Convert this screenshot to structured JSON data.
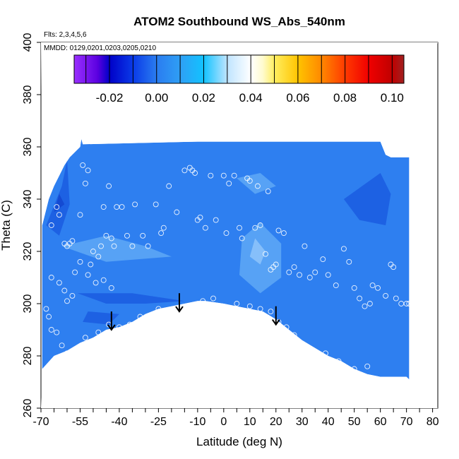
{
  "chart_data": {
    "type": "scatter",
    "title": "ATOM2 Southbound WS_Abs_540nm",
    "xlabel": "Latitude (deg N)",
    "ylabel": "Theta (C)",
    "xlim": [
      -70,
      82
    ],
    "ylim": [
      260,
      400
    ],
    "x_ticks": [
      -70,
      -55,
      -40,
      -25,
      -10,
      0,
      10,
      20,
      30,
      40,
      50,
      60,
      70,
      80
    ],
    "x_minor_ticks": [
      -65,
      -60,
      -50,
      -45,
      -35,
      -30,
      -20,
      -15,
      -5,
      5,
      15,
      25,
      35,
      45,
      55,
      65,
      75
    ],
    "y_ticks": [
      260,
      280,
      300,
      320,
      340,
      360,
      380,
      400
    ],
    "flights_note": "Flts: 2,3,4,5,6",
    "dates_note": "MMDD: 0129,0201,0203,0205,0210",
    "colorbar": {
      "vmin": -0.035,
      "vmax": 0.105,
      "tick_values": [
        -0.02,
        0.0,
        0.02,
        0.04,
        0.06,
        0.08,
        0.1
      ],
      "tick_labels": [
        "-0.02",
        "0.00",
        "0.02",
        "0.04",
        "0.06",
        "0.08",
        "0.10"
      ],
      "color_stops": [
        {
          "v": -0.035,
          "color": "#9b30ff"
        },
        {
          "v": -0.025,
          "color": "#5a00e0"
        },
        {
          "v": -0.02,
          "color": "#0000c8"
        },
        {
          "v": -0.01,
          "color": "#0a3ae8"
        },
        {
          "v": 0.0,
          "color": "#2a7cf0"
        },
        {
          "v": 0.01,
          "color": "#2f9ff5"
        },
        {
          "v": 0.02,
          "color": "#12c3ff"
        },
        {
          "v": 0.03,
          "color": "#bfe4ff"
        },
        {
          "v": 0.04,
          "color": "#ffffff"
        },
        {
          "v": 0.045,
          "color": "#fffbd0"
        },
        {
          "v": 0.05,
          "color": "#ffee60"
        },
        {
          "v": 0.06,
          "color": "#ffc400"
        },
        {
          "v": 0.07,
          "color": "#ff8800"
        },
        {
          "v": 0.08,
          "color": "#ff3a00"
        },
        {
          "v": 0.09,
          "color": "#f00000"
        },
        {
          "v": 0.1,
          "color": "#c00000"
        },
        {
          "v": 0.105,
          "color": "#a02020"
        }
      ]
    },
    "field_colors": {
      "background": "#2e7ff0",
      "light": "#5ea8f6",
      "lighter": "#8ec4fa",
      "dark": "#1a5ce0",
      "darker": "#1346cf"
    },
    "field_top_boundary": [
      [
        -69.5,
        330
      ],
      [
        -67,
        340
      ],
      [
        -65,
        345
      ],
      [
        -63,
        349
      ],
      [
        -61,
        353
      ],
      [
        -59,
        356
      ],
      [
        -57,
        358
      ],
      [
        -55,
        360
      ],
      [
        -54.5,
        363
      ],
      [
        -54,
        361
      ],
      [
        -10,
        362
      ],
      [
        30,
        362
      ],
      [
        60,
        362
      ],
      [
        62,
        357
      ],
      [
        64,
        356
      ],
      [
        71,
        356
      ]
    ],
    "field_bottom_boundary": [
      [
        -69.5,
        275
      ],
      [
        -65,
        280
      ],
      [
        -60,
        282
      ],
      [
        -55,
        285
      ],
      [
        -50,
        287
      ],
      [
        -45,
        290
      ],
      [
        -40,
        291
      ],
      [
        -35,
        293
      ],
      [
        -30,
        296
      ],
      [
        -25,
        298
      ],
      [
        -20,
        299
      ],
      [
        -15,
        300
      ],
      [
        -10,
        301
      ],
      [
        -7,
        301
      ],
      [
        0,
        300
      ],
      [
        5,
        299
      ],
      [
        10,
        298
      ],
      [
        15,
        297
      ],
      [
        20,
        294
      ],
      [
        25,
        290
      ],
      [
        30,
        286
      ],
      [
        35,
        283
      ],
      [
        40,
        280
      ],
      [
        45,
        278
      ],
      [
        50,
        275
      ],
      [
        55,
        273
      ],
      [
        60,
        272
      ],
      [
        65,
        272
      ],
      [
        70,
        272
      ],
      [
        71,
        271
      ]
    ],
    "field_patches": [
      {
        "shade": "light",
        "points": [
          [
            7,
            325
          ],
          [
            14,
            331
          ],
          [
            22,
            323
          ],
          [
            22,
            310
          ],
          [
            14,
            304
          ],
          [
            6,
            311
          ]
        ]
      },
      {
        "shade": "lighter",
        "points": [
          [
            12,
            325
          ],
          [
            16,
            320
          ],
          [
            14,
            315
          ],
          [
            10,
            318
          ]
        ]
      },
      {
        "shade": "light",
        "points": [
          [
            -62,
            322
          ],
          [
            -45,
            326
          ],
          [
            -30,
            322
          ],
          [
            -20,
            318
          ],
          [
            -45,
            316
          ]
        ]
      },
      {
        "shade": "light",
        "points": [
          [
            5,
            348
          ],
          [
            14,
            350
          ],
          [
            20,
            345
          ],
          [
            12,
            342
          ]
        ]
      },
      {
        "shade": "dark",
        "points": [
          [
            -68,
            330
          ],
          [
            -62,
            345
          ],
          [
            -60,
            355
          ],
          [
            -59,
            338
          ],
          [
            -63,
            326
          ]
        ]
      },
      {
        "shade": "darker",
        "points": [
          [
            -65,
            335
          ],
          [
            -63,
            342
          ],
          [
            -61,
            338
          ]
        ]
      },
      {
        "shade": "dark",
        "points": [
          [
            -56,
            304
          ],
          [
            -45,
            300
          ],
          [
            -30,
            300
          ],
          [
            -15,
            301
          ],
          [
            -35,
            304
          ]
        ]
      },
      {
        "shade": "dark",
        "points": [
          [
            46,
            340
          ],
          [
            60,
            350
          ],
          [
            64,
            342
          ],
          [
            62,
            330
          ],
          [
            52,
            332
          ]
        ]
      },
      {
        "shade": "dark",
        "points": [
          [
            -54,
            293
          ],
          [
            -44,
            292
          ],
          [
            -40,
            296
          ],
          [
            -52,
            297
          ]
        ]
      }
    ],
    "samples": [
      [
        -66,
        330
      ],
      [
        -64,
        337
      ],
      [
        -63,
        334
      ],
      [
        -61,
        323
      ],
      [
        -60,
        322
      ],
      [
        -59,
        323
      ],
      [
        -58,
        324
      ],
      [
        -55,
        334
      ],
      [
        -54,
        353
      ],
      [
        -53,
        346
      ],
      [
        -52,
        351
      ],
      [
        -51,
        315
      ],
      [
        -50,
        320
      ],
      [
        -48,
        318
      ],
      [
        -47,
        322
      ],
      [
        -46,
        337
      ],
      [
        -45,
        326
      ],
      [
        -44,
        345
      ],
      [
        -43,
        325
      ],
      [
        -42,
        322
      ],
      [
        -41,
        337
      ],
      [
        -39,
        337
      ],
      [
        -37,
        326
      ],
      [
        -35,
        322
      ],
      [
        -34,
        338
      ],
      [
        -31,
        326
      ],
      [
        -29,
        322
      ],
      [
        -26,
        338
      ],
      [
        -24,
        327
      ],
      [
        -23,
        329
      ],
      [
        -21,
        345
      ],
      [
        -18,
        335
      ],
      [
        -15,
        351
      ],
      [
        -13,
        352
      ],
      [
        -12,
        351
      ],
      [
        -11,
        350
      ],
      [
        -10,
        332
      ],
      [
        -9,
        333
      ],
      [
        -7,
        329
      ],
      [
        -5,
        349
      ],
      [
        -3,
        332
      ],
      [
        0,
        349
      ],
      [
        1,
        327
      ],
      [
        2,
        346
      ],
      [
        4,
        349
      ],
      [
        6,
        329
      ],
      [
        7,
        325
      ],
      [
        9,
        348
      ],
      [
        10,
        347
      ],
      [
        12,
        329
      ],
      [
        13,
        345
      ],
      [
        14,
        330
      ],
      [
        16,
        319
      ],
      [
        17,
        343
      ],
      [
        18,
        313
      ],
      [
        19,
        314
      ],
      [
        20,
        315
      ],
      [
        21,
        328
      ],
      [
        23,
        327
      ],
      [
        25,
        312
      ],
      [
        27,
        314
      ],
      [
        29,
        311
      ],
      [
        31,
        322
      ],
      [
        33,
        310
      ],
      [
        35,
        312
      ],
      [
        38,
        317
      ],
      [
        40,
        311
      ],
      [
        43,
        307
      ],
      [
        46,
        321
      ],
      [
        48,
        316
      ],
      [
        50,
        306
      ],
      [
        52,
        302
      ],
      [
        54,
        299
      ],
      [
        56,
        300
      ],
      [
        57,
        307
      ],
      [
        59,
        306
      ],
      [
        62,
        303
      ],
      [
        64,
        315
      ],
      [
        65,
        314
      ],
      [
        66,
        302
      ],
      [
        68,
        300
      ],
      [
        70,
        300
      ],
      [
        71,
        300
      ],
      [
        -68,
        298
      ],
      [
        -67,
        295
      ],
      [
        -66,
        290
      ],
      [
        -64,
        289
      ],
      [
        -62,
        284
      ],
      [
        -60,
        281
      ],
      [
        -57,
        282
      ],
      [
        -55,
        283
      ],
      [
        -53,
        287
      ],
      [
        -48,
        289
      ],
      [
        -44,
        292
      ],
      [
        -40,
        291
      ],
      [
        -36,
        292
      ],
      [
        -32,
        295
      ],
      [
        -25,
        298
      ],
      [
        -8,
        301
      ],
      [
        -4,
        302
      ],
      [
        5,
        300
      ],
      [
        10,
        299
      ],
      [
        14,
        298
      ],
      [
        18,
        297
      ],
      [
        21,
        293
      ],
      [
        24,
        291
      ],
      [
        27,
        288
      ],
      [
        33,
        282
      ],
      [
        39,
        281
      ],
      [
        44,
        278
      ],
      [
        50,
        275
      ],
      [
        55,
        276
      ],
      [
        -66,
        310
      ],
      [
        -63,
        308
      ],
      [
        -61,
        305
      ],
      [
        -60,
        301
      ],
      [
        -58,
        303
      ],
      [
        -57,
        312
      ],
      [
        -55,
        316
      ],
      [
        -52,
        311
      ],
      [
        -49,
        308
      ],
      [
        -46,
        309
      ],
      [
        -43,
        306
      ]
    ],
    "arrows": [
      {
        "latitude": -43,
        "theta_from": 297,
        "theta_to": 290
      },
      {
        "latitude": -17,
        "theta_from": 304,
        "theta_to": 297
      },
      {
        "latitude": 20,
        "theta_from": 299,
        "theta_to": 292
      }
    ]
  }
}
